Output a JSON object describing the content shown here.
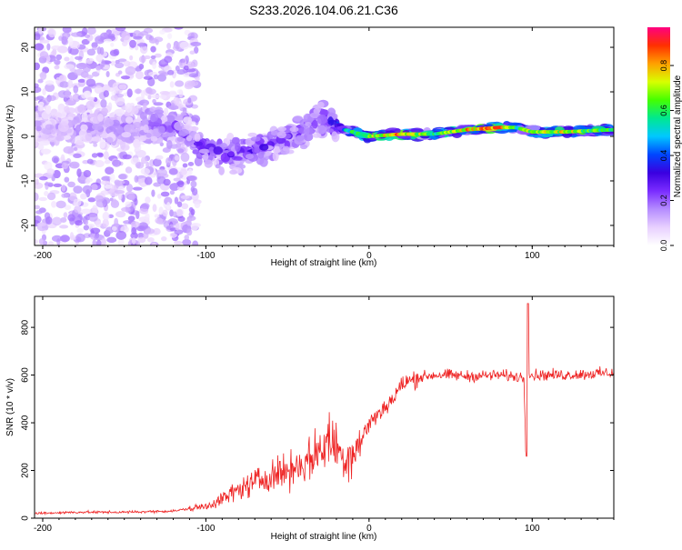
{
  "title": "S233.2026.104.06.21.C36",
  "chart_data": [
    {
      "type": "heatmap",
      "title": "S233.2026.104.06.21.C36",
      "xlabel": "Height of straight line (km)",
      "ylabel": "Frequency (Hz)",
      "xlim": [
        -205,
        150
      ],
      "ylim": [
        -24.5,
        24.5
      ],
      "xticks": [
        -200,
        -100,
        0,
        100
      ],
      "yticks": [
        -20,
        -10,
        0,
        10,
        20
      ],
      "colorbar": {
        "label": "Normalized spectral amplitude",
        "range": [
          0,
          0.97
        ],
        "ticks": [
          0.0,
          0.2,
          0.4,
          0.6,
          0.8
        ],
        "colormap": [
          "#ffffff",
          "#e8d0ff",
          "#b58cff",
          "#7a2cff",
          "#3a00e0",
          "#0046ff",
          "#00c8ff",
          "#00e890",
          "#44ff00",
          "#d8ff00",
          "#ffa000",
          "#ff3000",
          "#ff0080"
        ]
      },
      "ridge": {
        "description": "frequency trace vs height",
        "x": [
          -205,
          -150,
          -120,
          -100,
          -80,
          -60,
          -40,
          -30,
          -20,
          -10,
          0,
          20,
          40,
          60,
          80,
          90,
          100,
          120,
          150
        ],
        "freq": [
          2,
          2,
          2,
          -3,
          -4,
          -2,
          1,
          4,
          2,
          1,
          0,
          0.5,
          0.5,
          1.5,
          2,
          2,
          1,
          1,
          1.5
        ],
        "amplitude": [
          0.15,
          0.18,
          0.25,
          0.3,
          0.3,
          0.3,
          0.28,
          0.3,
          0.4,
          0.6,
          0.7,
          0.85,
          0.6,
          0.8,
          0.85,
          0.6,
          0.7,
          0.75,
          0.6
        ]
      }
    },
    {
      "type": "line",
      "xlabel": "Height of straight line (km)",
      "ylabel": "SNR (10 * v/v)",
      "xlim": [
        -205,
        150
      ],
      "ylim": [
        0,
        930
      ],
      "xticks": [
        -200,
        -100,
        0,
        100
      ],
      "yticks": [
        0,
        200,
        400,
        600,
        800
      ],
      "color": "#ee2222",
      "series": [
        {
          "name": "SNR",
          "x": [
            -205,
            -180,
            -150,
            -120,
            -100,
            -90,
            -80,
            -70,
            -60,
            -50,
            -40,
            -30,
            -25,
            -20,
            -15,
            -10,
            -5,
            0,
            5,
            10,
            15,
            20,
            30,
            40,
            50,
            60,
            80,
            95,
            96,
            97,
            98,
            100,
            120,
            150
          ],
          "y": [
            20,
            25,
            25,
            30,
            50,
            80,
            120,
            150,
            180,
            200,
            230,
            280,
            330,
            300,
            250,
            280,
            320,
            400,
            430,
            470,
            500,
            560,
            590,
            600,
            600,
            595,
            600,
            590,
            300,
            900,
            600,
            600,
            600,
            610
          ]
        }
      ]
    }
  ]
}
